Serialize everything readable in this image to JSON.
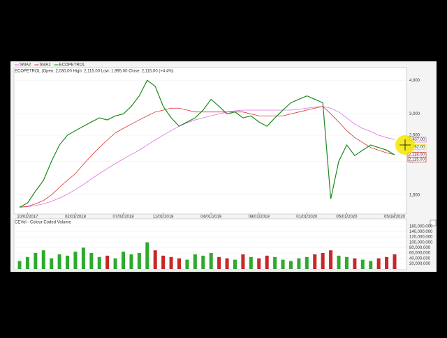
{
  "chart_data": [
    {
      "type": "line",
      "legend": [
        "SMA2",
        "SMA1",
        "ECOPETROL"
      ],
      "title": "ECOPETROL (Open: 2,030.00  High: 2,115.00  Low: 1,995.00  Close: 2,115.00 (+4.4%)",
      "log_scale": true,
      "ylim": [
        1290,
        4380
      ],
      "yticks": [
        {
          "value": 1500,
          "label": "1,500"
        },
        {
          "value": 2000,
          "label": "2,000"
        },
        {
          "value": 2500,
          "label": "2,500"
        },
        {
          "value": 3000,
          "label": "3,000"
        },
        {
          "value": 4000,
          "label": "4,000"
        }
      ],
      "categories": [
        null,
        "10/02/2017",
        null,
        null,
        null,
        null,
        null,
        "02/01/2018",
        null,
        null,
        null,
        null,
        null,
        "07/02/2018",
        null,
        null,
        null,
        null,
        "11/01/2018",
        null,
        null,
        null,
        null,
        null,
        "04/01/2019",
        null,
        null,
        null,
        null,
        null,
        "08/01/2019",
        null,
        null,
        null,
        null,
        null,
        "01/01/2020",
        null,
        null,
        null,
        null,
        "05/01/2020",
        null,
        null,
        null,
        null,
        null,
        "05/18/2020"
      ],
      "series": [
        {
          "name": "SMA2",
          "color": "#e070e0",
          "values": [
            1350,
            1355,
            1370,
            1390,
            1420,
            1460,
            1510,
            1570,
            1640,
            1720,
            1800,
            1880,
            1960,
            2040,
            2120,
            2200,
            2300,
            2400,
            2500,
            2600,
            2700,
            2780,
            2850,
            2900,
            2950,
            3000,
            3050,
            3080,
            3100,
            3100,
            3100,
            3100,
            3100,
            3100,
            3100,
            3120,
            3150,
            3180,
            3200,
            3150,
            3050,
            2900,
            2750,
            2650,
            2580,
            2500,
            2450,
            2407
          ]
        },
        {
          "name": "SMA1",
          "color": "#d9302f",
          "values": [
            1350,
            1360,
            1390,
            1430,
            1500,
            1600,
            1700,
            1800,
            1950,
            2100,
            2250,
            2400,
            2550,
            2650,
            2750,
            2850,
            2950,
            3050,
            3100,
            3150,
            3150,
            3100,
            3050,
            3050,
            3050,
            3050,
            3050,
            3050,
            3050,
            3000,
            2950,
            2950,
            2950,
            2950,
            3000,
            3050,
            3100,
            3150,
            3200,
            3000,
            2800,
            2600,
            2450,
            2350,
            2250,
            2200,
            2150,
            2118
          ]
        },
        {
          "name": "ECOPETROL",
          "color": "#1a8a1a",
          "values": [
            1350,
            1400,
            1550,
            1700,
            2000,
            2300,
            2500,
            2600,
            2700,
            2800,
            2900,
            2850,
            2950,
            3000,
            3200,
            3500,
            4000,
            3800,
            3200,
            2900,
            2700,
            2800,
            2900,
            3100,
            3400,
            3200,
            3000,
            3050,
            2900,
            2950,
            2800,
            2700,
            2900,
            3100,
            3300,
            3400,
            3500,
            3400,
            3300,
            1450,
            2000,
            2300,
            2100,
            2200,
            2300,
            2250,
            2200,
            2115
          ]
        }
      ],
      "last_labels": [
        {
          "value": 2407,
          "label": "2,407.00",
          "color": "#e070e0"
        },
        {
          "value": 2262,
          "label": "2,262.00",
          "color": "#e8e020"
        },
        {
          "value": 2118,
          "label": "2,118.00",
          "color": "#d9302f"
        },
        {
          "value": 2115,
          "label": "2,115.00",
          "color": "#d9302f"
        }
      ]
    },
    {
      "type": "bar",
      "title": "CEVol - Colour Coded Volume",
      "up_color": "#2eaa2e",
      "down_color": "#c62828",
      "ylim": [
        0,
        175000000
      ],
      "yticks": [
        {
          "value": 20000000,
          "label": "20,000,000"
        },
        {
          "value": 40000000,
          "label": "40,000,000"
        },
        {
          "value": 60000000,
          "label": "60,000,000"
        },
        {
          "value": 80000000,
          "label": "80,000,000"
        },
        {
          "value": 100000000,
          "label": "100,000,000"
        },
        {
          "value": 120000000,
          "label": "120,000,000"
        },
        {
          "value": 140000000,
          "label": "140,000,000"
        },
        {
          "value": 160000000,
          "label": "160,000,000"
        }
      ],
      "values": [
        30000000,
        45000000,
        60000000,
        70000000,
        40000000,
        55000000,
        50000000,
        65000000,
        80000000,
        60000000,
        45000000,
        50000000,
        40000000,
        65000000,
        55000000,
        60000000,
        100000000,
        70000000,
        50000000,
        45000000,
        40000000,
        35000000,
        55000000,
        50000000,
        60000000,
        45000000,
        40000000,
        35000000,
        55000000,
        45000000,
        40000000,
        50000000,
        45000000,
        35000000,
        30000000,
        40000000,
        45000000,
        55000000,
        60000000,
        70000000,
        50000000,
        45000000,
        40000000,
        35000000,
        30000000,
        40000000,
        45000000,
        55000000
      ]
    }
  ]
}
